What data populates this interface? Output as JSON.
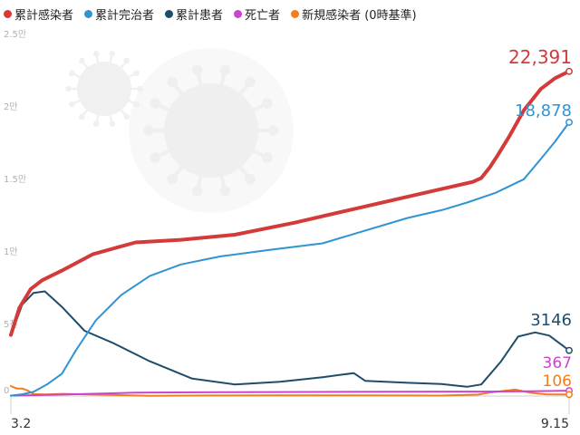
{
  "chart_data": {
    "type": "line",
    "y_unit": "people",
    "ylim": [
      0,
      25000
    ],
    "y_ticks": [
      {
        "value": 0,
        "label": "0"
      },
      {
        "value": 5000,
        "label": "5천"
      },
      {
        "value": 10000,
        "label": "1만"
      },
      {
        "value": 15000,
        "label": "1.5만"
      },
      {
        "value": 20000,
        "label": "2만"
      },
      {
        "value": 25000,
        "label": "2.5만"
      }
    ],
    "x_range": [
      "2020-03-02",
      "2020-09-15"
    ],
    "x_labels": [
      {
        "date": "2020-03-02",
        "label": "3.2"
      },
      {
        "date": "2020-09-15",
        "label": "9.15"
      }
    ],
    "grid": false,
    "legend_position": "top-left",
    "series": [
      {
        "name": "累計感染者",
        "color": "#d33a3a",
        "stroke_width": 4,
        "end_label": "22,391",
        "end_label_size": 20,
        "points": [
          [
            "2020-03-02",
            4212
          ],
          [
            "2020-03-05",
            6088
          ],
          [
            "2020-03-09",
            7382
          ],
          [
            "2020-03-13",
            7979
          ],
          [
            "2020-03-20",
            8652
          ],
          [
            "2020-03-31",
            9786
          ],
          [
            "2020-04-15",
            10591
          ],
          [
            "2020-05-01",
            10774
          ],
          [
            "2020-05-20",
            11122
          ],
          [
            "2020-06-10",
            11947
          ],
          [
            "2020-06-30",
            12850
          ],
          [
            "2020-07-20",
            13745
          ],
          [
            "2020-08-05",
            14456
          ],
          [
            "2020-08-12",
            14770
          ],
          [
            "2020-08-15",
            15039
          ],
          [
            "2020-08-18",
            15761
          ],
          [
            "2020-08-21",
            16670
          ],
          [
            "2020-08-25",
            17945
          ],
          [
            "2020-08-30",
            19699
          ],
          [
            "2020-09-05",
            21177
          ],
          [
            "2020-09-10",
            21919
          ],
          [
            "2020-09-15",
            22391
          ]
        ]
      },
      {
        "name": "累計完治者",
        "color": "#2f94d4",
        "stroke_width": 2,
        "end_label": "18,878",
        "end_label_size": 18,
        "points": [
          [
            "2020-03-02",
            30
          ],
          [
            "2020-03-06",
            118
          ],
          [
            "2020-03-10",
            288
          ],
          [
            "2020-03-15",
            834
          ],
          [
            "2020-03-20",
            1540
          ],
          [
            "2020-03-25",
            3166
          ],
          [
            "2020-04-01",
            5228
          ],
          [
            "2020-04-10",
            6973
          ],
          [
            "2020-04-20",
            8277
          ],
          [
            "2020-05-01",
            9072
          ],
          [
            "2020-05-15",
            9632
          ],
          [
            "2020-06-01",
            10066
          ],
          [
            "2020-06-20",
            10531
          ],
          [
            "2020-07-01",
            11172
          ],
          [
            "2020-07-20",
            12282
          ],
          [
            "2020-08-01",
            12819
          ],
          [
            "2020-08-10",
            13343
          ],
          [
            "2020-08-20",
            14014
          ],
          [
            "2020-08-30",
            14947
          ],
          [
            "2020-09-05",
            16345
          ],
          [
            "2020-09-10",
            17539
          ],
          [
            "2020-09-15",
            18878
          ]
        ]
      },
      {
        "name": "累計患者",
        "color": "#1e4d6b",
        "stroke_width": 2,
        "end_label": "3146",
        "end_label_size": 18,
        "points": [
          [
            "2020-03-02",
            4180
          ],
          [
            "2020-03-06",
            6300
          ],
          [
            "2020-03-10",
            7110
          ],
          [
            "2020-03-14",
            7220
          ],
          [
            "2020-03-20",
            6150
          ],
          [
            "2020-03-28",
            4500
          ],
          [
            "2020-04-07",
            3660
          ],
          [
            "2020-04-20",
            2400
          ],
          [
            "2020-05-05",
            1200
          ],
          [
            "2020-05-20",
            800
          ],
          [
            "2020-06-05",
            980
          ],
          [
            "2020-06-20",
            1300
          ],
          [
            "2020-07-01",
            1580
          ],
          [
            "2020-07-05",
            1050
          ],
          [
            "2020-07-20",
            910
          ],
          [
            "2020-08-01",
            830
          ],
          [
            "2020-08-10",
            640
          ],
          [
            "2020-08-15",
            800
          ],
          [
            "2020-08-22",
            2400
          ],
          [
            "2020-08-28",
            4100
          ],
          [
            "2020-09-03",
            4390
          ],
          [
            "2020-09-08",
            4170
          ],
          [
            "2020-09-15",
            3146
          ]
        ]
      },
      {
        "name": "死亡者",
        "color": "#cc44cc",
        "stroke_width": 2,
        "end_label": "367",
        "end_label_size": 17,
        "points": [
          [
            "2020-03-02",
            28
          ],
          [
            "2020-03-20",
            100
          ],
          [
            "2020-04-15",
            230
          ],
          [
            "2020-05-15",
            262
          ],
          [
            "2020-06-15",
            280
          ],
          [
            "2020-07-15",
            297
          ],
          [
            "2020-08-15",
            309
          ],
          [
            "2020-09-01",
            326
          ],
          [
            "2020-09-15",
            367
          ]
        ]
      },
      {
        "name": "新規感染者 (0時基準)",
        "color": "#f07e1b",
        "stroke_width": 2,
        "end_label": "106",
        "end_label_size": 17,
        "points": [
          [
            "2020-03-02",
            686
          ],
          [
            "2020-03-04",
            516
          ],
          [
            "2020-03-06",
            518
          ],
          [
            "2020-03-08",
            367
          ],
          [
            "2020-03-10",
            131
          ],
          [
            "2020-03-14",
            107
          ],
          [
            "2020-03-20",
            147
          ],
          [
            "2020-04-01",
            101
          ],
          [
            "2020-04-20",
            13
          ],
          [
            "2020-05-10",
            35
          ],
          [
            "2020-06-05",
            51
          ],
          [
            "2020-07-01",
            51
          ],
          [
            "2020-08-01",
            31
          ],
          [
            "2020-08-14",
            103
          ],
          [
            "2020-08-18",
            246
          ],
          [
            "2020-08-27",
            441
          ],
          [
            "2020-09-01",
            235
          ],
          [
            "2020-09-07",
            119
          ],
          [
            "2020-09-15",
            106
          ]
        ]
      }
    ]
  }
}
